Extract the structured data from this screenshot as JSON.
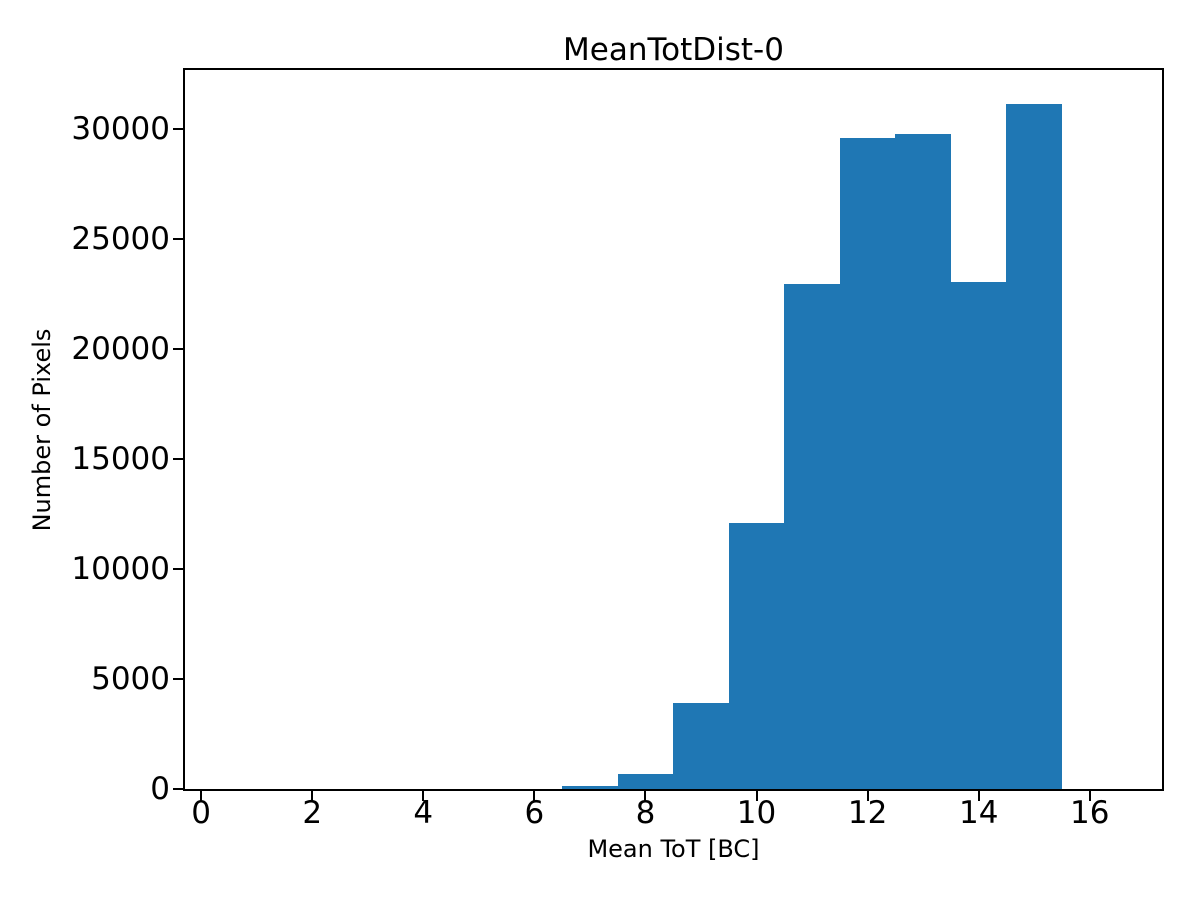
{
  "chart_data": {
    "type": "bar",
    "subtype": "histogram",
    "title": "MeanTotDist-0",
    "xlabel": "Mean ToT [BC]",
    "ylabel": "Number of Pixels",
    "bar_color": "#1f77b4",
    "text_color": "#000000",
    "background_color": "#ffffff",
    "bin_edges": [
      6.5,
      7.5,
      8.5,
      9.5,
      10.5,
      11.5,
      12.5,
      13.5,
      14.5,
      15.5
    ],
    "bin_centers": [
      7,
      8,
      9,
      10,
      11,
      12,
      13,
      14,
      15
    ],
    "counts": [
      130,
      690,
      3890,
      12100,
      22950,
      29620,
      29780,
      23070,
      31150
    ],
    "xticks": [
      0,
      2,
      4,
      6,
      8,
      10,
      12,
      14,
      16
    ],
    "yticks": [
      0,
      5000,
      10000,
      15000,
      20000,
      25000,
      30000
    ],
    "xlim": [
      -0.29,
      17.3
    ],
    "ylim": [
      0,
      32700
    ],
    "grid": false,
    "legend": null
  }
}
